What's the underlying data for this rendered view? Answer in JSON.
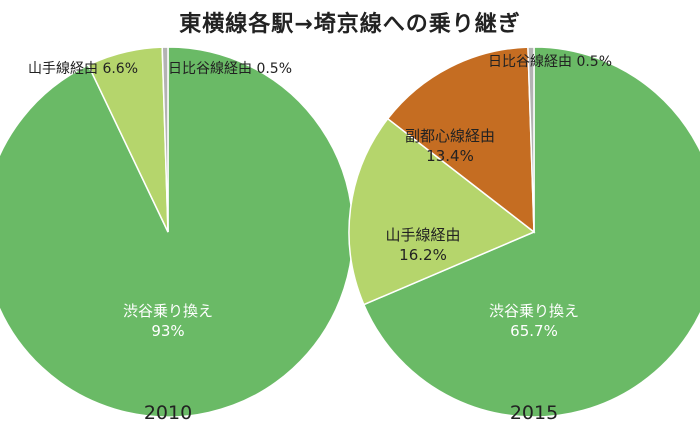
{
  "title": "東横線各駅→埼京線への乗り継ぎ",
  "chart_data": [
    {
      "type": "pie",
      "year": "2010",
      "slices": [
        {
          "label": "渋谷乗り換え",
          "value": 93,
          "display": "93%",
          "color": "#6aba66",
          "label_color": "#ffffff"
        },
        {
          "label": "山手線経由",
          "value": 6.6,
          "display": "6.6%",
          "color": "#b5d56c",
          "label_color": "#222222"
        },
        {
          "label": "日比谷線経由",
          "value": 0.5,
          "display": "0.5%",
          "color": "#b3b3b3",
          "label_color": "#222222"
        }
      ]
    },
    {
      "type": "pie",
      "year": "2015",
      "slices": [
        {
          "label": "渋谷乗り換え",
          "value": 65.7,
          "display": "65.7%",
          "color": "#6aba66",
          "label_color": "#ffffff"
        },
        {
          "label": "山手線経由",
          "value": 16.2,
          "display": "16.2%",
          "color": "#b5d56c",
          "label_color": "#222222"
        },
        {
          "label": "副都心線経由",
          "value": 13.4,
          "display": "13.4%",
          "color": "#c56d22",
          "label_color": "#222222"
        },
        {
          "label": "日比谷線経由",
          "value": 0.5,
          "display": "0.5%",
          "color": "#b3b3b3",
          "label_color": "#222222"
        }
      ]
    }
  ]
}
